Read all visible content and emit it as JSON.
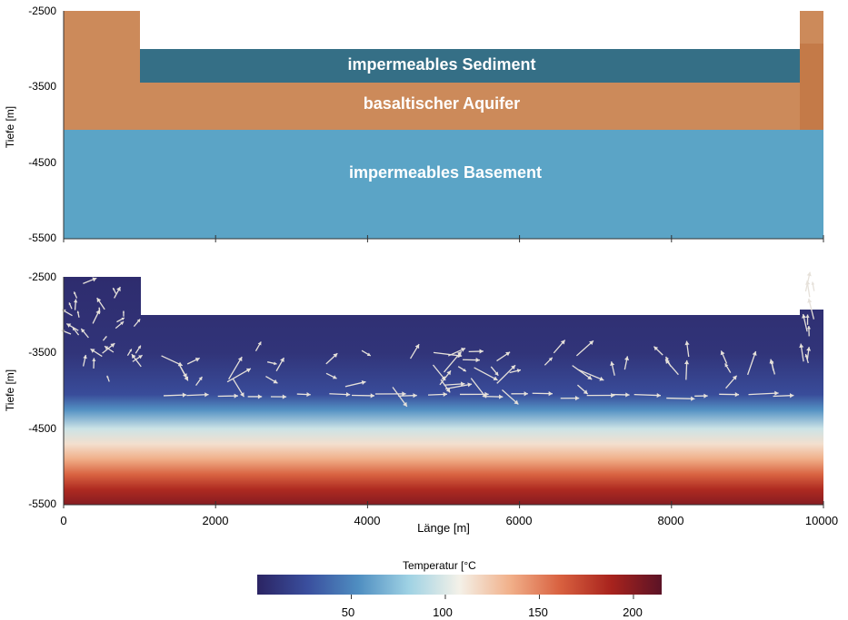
{
  "colors": {
    "aquifer": "#cc8a5a",
    "aquifer_right": "#c47a48",
    "sediment": "#356f86",
    "basement": "#5ba4c6",
    "layer_label": "#ffffff",
    "axis": "#333333",
    "arrow": "#e6e1da"
  },
  "chart_data": [
    {
      "type": "heatmap",
      "subtype": "geological-cross-section",
      "title": "",
      "xlabel": "",
      "ylabel": "Tiefe [m]",
      "xlim": [
        0,
        10000
      ],
      "ylim": [
        -5500,
        -2500
      ],
      "x_ticks": [
        0,
        2000,
        4000,
        6000,
        8000,
        10000
      ],
      "y_ticks": [
        "-2500",
        "-3500",
        "-4500",
        "-5500"
      ],
      "grid": false,
      "regions": [
        {
          "name": "impermeables Sediment",
          "x": [
            1000,
            9750
          ],
          "depth": [
            -2970,
            -3420
          ],
          "color": "sediment"
        },
        {
          "name": "basaltischer Aquifer",
          "x": [
            0,
            10000
          ],
          "depth": [
            -2500,
            -4050
          ],
          "color": "aquifer"
        },
        {
          "name": "impermeables Basement",
          "x": [
            0,
            10000
          ],
          "depth": [
            -4050,
            -5500
          ],
          "color": "basement"
        }
      ],
      "labels": {
        "sediment": "impermeables Sediment",
        "aquifer": "basaltischer Aquifer",
        "basement": "impermeables Basement"
      }
    },
    {
      "type": "heatmap",
      "subtype": "temperature-field-with-flow-vectors",
      "title": "",
      "xlabel": "Länge [m]",
      "ylabel": "Tiefe [m]",
      "xlim": [
        0,
        10000
      ],
      "ylim": [
        -5500,
        -2500
      ],
      "x_ticks": [
        "0",
        "2000",
        "4000",
        "6000",
        "8000",
        "10000"
      ],
      "y_ticks": [
        "-2500",
        "-3500",
        "-4500",
        "-5500"
      ],
      "grid": false,
      "temperature_profile": [
        {
          "depth": -2500,
          "temp": 5
        },
        {
          "depth": -3500,
          "temp": 10
        },
        {
          "depth": -4050,
          "temp": 25
        },
        {
          "depth": -4250,
          "temp": 55
        },
        {
          "depth": -4500,
          "temp": 95
        },
        {
          "depth": -4700,
          "temp": 115
        },
        {
          "depth": -4900,
          "temp": 135
        },
        {
          "depth": -5100,
          "temp": 160
        },
        {
          "depth": -5300,
          "temp": 185
        },
        {
          "depth": -5500,
          "temp": 200
        }
      ],
      "colorbar": {
        "title": "Temperatur [°C",
        "range": [
          0,
          215
        ],
        "ticks": [
          "50",
          "100",
          "150",
          "200"
        ],
        "stops": [
          "#2b2463",
          "#3a4f9e",
          "#4f8ec1",
          "#9fd2e4",
          "#f4f1e8",
          "#f1b08a",
          "#d8603f",
          "#a8231d",
          "#5b1326"
        ]
      }
    }
  ]
}
